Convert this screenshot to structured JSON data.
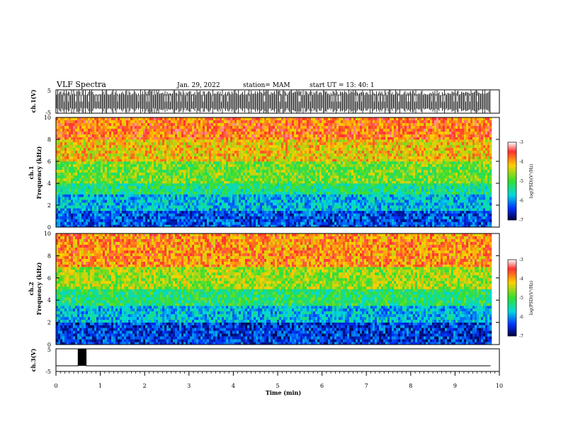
{
  "header": {
    "title": "VLF Spectra",
    "date": "Jan. 29, 2022",
    "station": "station= MAM",
    "start": "start  UT  =   13: 40: 1"
  },
  "chart_data": [
    {
      "type": "line",
      "title": "",
      "ylabel": "ch.1(V)",
      "ylim": [
        -5,
        5
      ],
      "yticks": [
        "5",
        "-5"
      ],
      "xlim": [
        0,
        10
      ],
      "description_values": {
        "amplitude_range": [
          -5,
          5
        ],
        "data_end_min": 9.8
      }
    },
    {
      "type": "heatmap",
      "title": "",
      "ylabel_line1": "ch.1",
      "ylabel_line2": "Frequency (kHz)",
      "ylim": [
        0,
        10
      ],
      "yticks": [
        "0",
        "2",
        "4",
        "6",
        "8",
        "10"
      ],
      "xlim": [
        0,
        10
      ],
      "data_end_min": 9.8,
      "colorbar": {
        "label": "log(PSD)(V²/Hz)",
        "ticks": [
          "-3",
          "-4",
          "-5",
          "-6",
          "-7"
        ],
        "range": [
          -7,
          -3
        ]
      },
      "bands": [
        {
          "f_from": 0,
          "f_to": 1.5,
          "logpsd": -6.3
        },
        {
          "f_from": 1.5,
          "f_to": 3,
          "logpsd": -5.8
        },
        {
          "f_from": 3,
          "f_to": 4,
          "logpsd": -5.3
        },
        {
          "f_from": 4,
          "f_to": 6,
          "logpsd": -4.8
        },
        {
          "f_from": 6,
          "f_to": 8,
          "logpsd": -4.2
        },
        {
          "f_from": 8,
          "f_to": 10,
          "logpsd": -3.8
        }
      ]
    },
    {
      "type": "heatmap",
      "title": "",
      "ylabel_line1": "ch.2",
      "ylabel_line2": "Frequency (kHz)",
      "ylim": [
        0,
        10
      ],
      "yticks": [
        "0",
        "2",
        "4",
        "6",
        "8",
        "10"
      ],
      "xlim": [
        0,
        10
      ],
      "data_end_min": 9.8,
      "colorbar": {
        "label": "log(PSD)(V²/Hz)",
        "ticks": [
          "-3",
          "-4",
          "-5",
          "-6",
          "-7"
        ],
        "range": [
          -7,
          -3
        ]
      },
      "bands": [
        {
          "f_from": 0,
          "f_to": 2,
          "logpsd": -6.4
        },
        {
          "f_from": 2,
          "f_to": 3.5,
          "logpsd": -5.8
        },
        {
          "f_from": 3.5,
          "f_to": 5,
          "logpsd": -5.2
        },
        {
          "f_from": 5,
          "f_to": 7,
          "logpsd": -4.6
        },
        {
          "f_from": 7,
          "f_to": 10,
          "logpsd": -3.9
        }
      ]
    },
    {
      "type": "line",
      "title": "",
      "ylabel": "ch.3(V)",
      "ylim": [
        -5,
        5
      ],
      "yticks": [
        "5",
        "-5"
      ],
      "xlim": [
        0,
        10
      ],
      "xlabel": "Time (min)",
      "xticks": [
        "0",
        "1",
        "2",
        "3",
        "4",
        "5",
        "6",
        "7",
        "8",
        "9",
        "10"
      ],
      "x": [
        0,
        0.5,
        0.5,
        0.68,
        0.68,
        9.8
      ],
      "y": [
        -2.5,
        -2.5,
        5,
        5,
        -2.5,
        -2.5
      ]
    }
  ]
}
